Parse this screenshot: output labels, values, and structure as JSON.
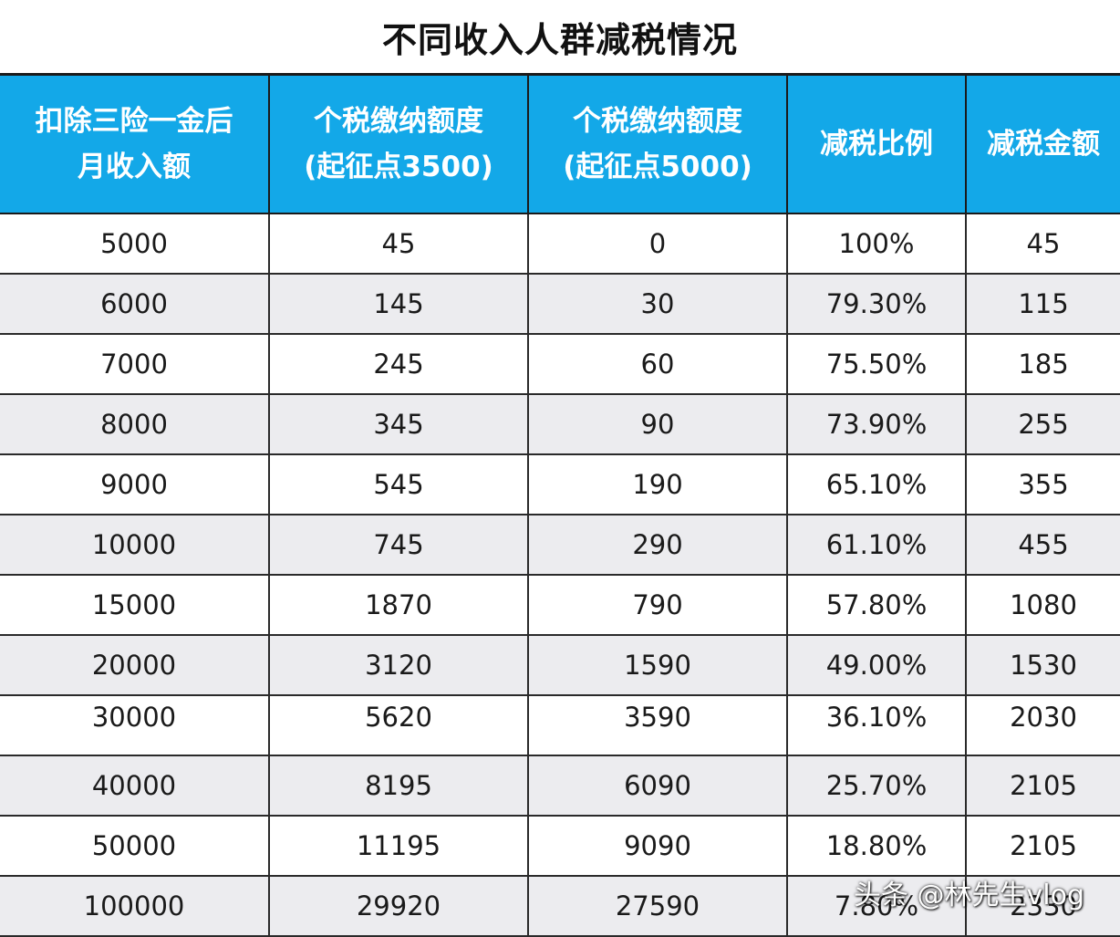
{
  "title": "不同收入人群减税情况",
  "columns": [
    [
      "扣除三险一金后",
      "月收入额"
    ],
    [
      "个税缴纳额度",
      "(起征点3500)"
    ],
    [
      "个税缴纳额度",
      "(起征点5000)"
    ],
    [
      "减税比例"
    ],
    [
      "减税金额"
    ]
  ],
  "rows": [
    [
      "5000",
      "45",
      "0",
      "100%",
      "45"
    ],
    [
      "6000",
      "145",
      "30",
      "79.30%",
      "115"
    ],
    [
      "7000",
      "245",
      "60",
      "75.50%",
      "185"
    ],
    [
      "8000",
      "345",
      "90",
      "73.90%",
      "255"
    ],
    [
      "9000",
      "545",
      "190",
      "65.10%",
      "355"
    ],
    [
      "10000",
      "745",
      "290",
      "61.10%",
      "455"
    ],
    [
      "15000",
      "1870",
      "790",
      "57.80%",
      "1080"
    ],
    [
      "20000",
      "3120",
      "1590",
      "49.00%",
      "1530"
    ],
    [
      "30000",
      "5620",
      "3590",
      "36.10%",
      "2030"
    ],
    [
      "40000",
      "8195",
      "6090",
      "25.70%",
      "2105"
    ],
    [
      "50000",
      "11195",
      "9090",
      "18.80%",
      "2105"
    ],
    [
      "100000",
      "29920",
      "27590",
      "7.80%",
      "2330"
    ]
  ],
  "watermark": "头条 @林先生vlog",
  "colors": {
    "header_bg": "#13a8e8",
    "header_text": "#ffffff",
    "stripe": "#ececef",
    "grid": "#2a2a2a"
  }
}
